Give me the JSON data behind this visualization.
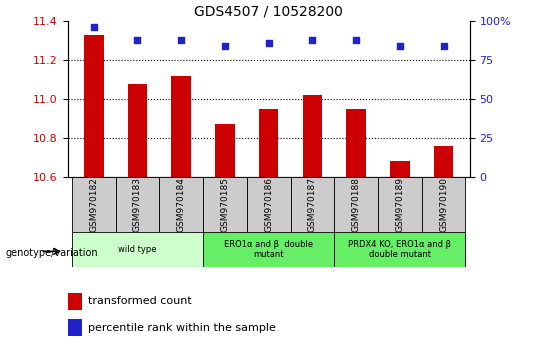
{
  "title": "GDS4507 / 10528200",
  "samples": [
    "GSM970182",
    "GSM970183",
    "GSM970184",
    "GSM970185",
    "GSM970186",
    "GSM970187",
    "GSM970188",
    "GSM970189",
    "GSM970190"
  ],
  "bar_values": [
    11.33,
    11.08,
    11.12,
    10.87,
    10.95,
    11.02,
    10.95,
    10.68,
    10.76
  ],
  "percentile_values": [
    96,
    88,
    88,
    84,
    86,
    88,
    88,
    84,
    84
  ],
  "ylim_left": [
    10.6,
    11.4
  ],
  "ylim_right": [
    0,
    100
  ],
  "yticks_left": [
    10.6,
    10.8,
    11.0,
    11.2,
    11.4
  ],
  "yticks_right": [
    0,
    25,
    50,
    75,
    100
  ],
  "bar_color": "#cc0000",
  "dot_color": "#2222cc",
  "background_color": "#ffffff",
  "plot_bg_color": "#ffffff",
  "grid_color": "#000000",
  "sample_cell_color": "#cccccc",
  "groups": [
    {
      "label": "wild type",
      "start": 0,
      "end": 2,
      "color": "#ccffcc"
    },
    {
      "label": "ERO1α and β  double\nmutant",
      "start": 3,
      "end": 5,
      "color": "#66ee66"
    },
    {
      "label": "PRDX4 KO, ERO1α and β\ndouble mutant",
      "start": 6,
      "end": 8,
      "color": "#66ee66"
    }
  ],
  "xlabel_bottom": "genotype/variation",
  "legend_bar_label": "transformed count",
  "legend_dot_label": "percentile rank within the sample",
  "tick_label_color_left": "#cc0000",
  "tick_label_color_right": "#2222cc",
  "right_ytick_labels": [
    "0",
    "25",
    "50",
    "75",
    "100%"
  ]
}
